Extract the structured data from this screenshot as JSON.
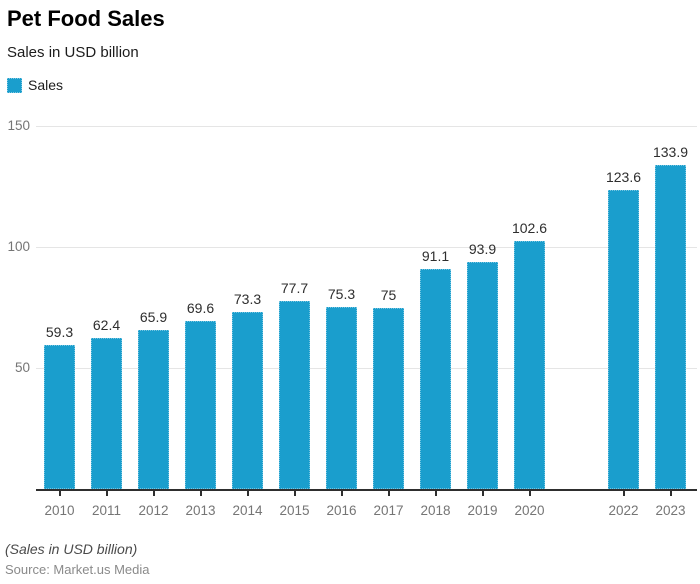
{
  "header": {
    "title": "Pet Food Sales",
    "subtitle": "Sales in USD billion"
  },
  "legend": {
    "items": [
      {
        "label": "Sales",
        "color": "#1A9ECD"
      }
    ]
  },
  "footer": {
    "note": "(Sales in USD billion)",
    "source": "Source: Market.us Media"
  },
  "colors": {
    "bar": "#1A9ECD",
    "gridline": "#E5E5E5",
    "axis_line": "#2E2E2E",
    "axis_label": "#757575",
    "value_label": "#2E2E2E"
  },
  "chart_data": {
    "type": "bar",
    "title": "Pet Food Sales",
    "subtitle": "Sales in USD billion",
    "legend": [
      "Sales"
    ],
    "legend_position": "top-left",
    "categories": [
      "2010",
      "2011",
      "2012",
      "2013",
      "2014",
      "2015",
      "2016",
      "2017",
      "2018",
      "2019",
      "2020",
      "",
      "2022",
      "2023"
    ],
    "values": [
      59.3,
      62.4,
      65.9,
      69.6,
      73.3,
      77.7,
      75.3,
      75,
      91.1,
      93.9,
      102.6,
      null,
      123.6,
      133.9
    ],
    "value_labels": [
      "59.3",
      "62.4",
      "65.9",
      "69.6",
      "73.3",
      "77.7",
      "75.3",
      "75",
      "91.1",
      "93.9",
      "102.6",
      "",
      "123.6",
      "133.9"
    ],
    "xlabel": "",
    "ylabel": "",
    "ylim": [
      0,
      150
    ],
    "yticks": [
      50,
      100,
      150
    ],
    "grid": true,
    "footnote": "(Sales in USD billion)",
    "source": "Source: Market.us Media"
  }
}
